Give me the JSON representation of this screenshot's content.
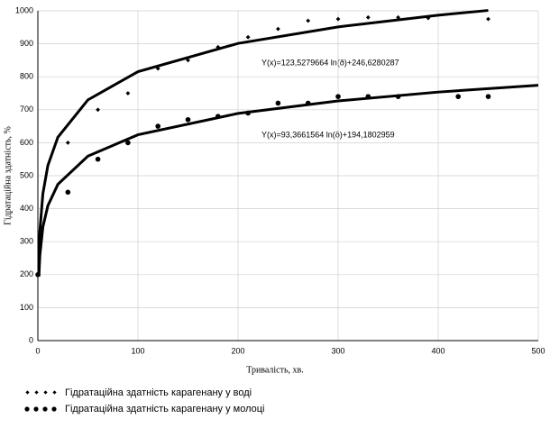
{
  "chart_data": {
    "type": "scatter",
    "x_label": "Тривалість, хв.",
    "y_label": "Гідратаційна здатність, %",
    "xlim": [
      0,
      500
    ],
    "xticks": [
      0,
      100,
      200,
      300,
      400,
      500
    ],
    "ylim": [
      0,
      1000
    ],
    "yticks": [
      0,
      100,
      200,
      300,
      400,
      500,
      600,
      700,
      800,
      900,
      1000
    ],
    "grid": true,
    "series": [
      {
        "name": "Гідратаційна здатність карагенану у воді",
        "color": "#000000",
        "marker": "diamond",
        "x": [
          0,
          30,
          60,
          90,
          120,
          150,
          180,
          210,
          240,
          270,
          300,
          330,
          360,
          390,
          450
        ],
        "values": [
          200,
          600,
          700,
          750,
          825,
          850,
          890,
          920,
          945,
          970,
          975,
          980,
          980,
          978,
          975
        ]
      },
      {
        "name": "Гідратаційна здатність карагенану у молоці",
        "color": "#000000",
        "marker": "circle",
        "x": [
          0,
          30,
          60,
          90,
          120,
          150,
          180,
          210,
          240,
          270,
          300,
          330,
          360,
          420,
          450
        ],
        "values": [
          200,
          450,
          550,
          600,
          650,
          670,
          680,
          690,
          720,
          720,
          740,
          740,
          740,
          740,
          740
        ]
      }
    ],
    "trendlines": [
      {
        "equation": "Y(x)=123,5279664 ln(ð)+246,6280287",
        "color": "#000000",
        "x": [
          1,
          2,
          5,
          10,
          20,
          50,
          100,
          200,
          300,
          400,
          450
        ],
        "values": [
          246.6,
          332.3,
          445.4,
          531.1,
          616.7,
          729.9,
          815.5,
          901.1,
          951.2,
          986.7,
          1001.2
        ]
      },
      {
        "equation": "Y(x)=93,3661564 ln(ð)+194,1802959",
        "color": "#000000",
        "x": [
          1,
          2,
          5,
          10,
          20,
          50,
          100,
          200,
          300,
          400,
          500
        ],
        "values": [
          194.2,
          258.9,
          344.4,
          409.2,
          473.9,
          559.4,
          624.1,
          688.9,
          726.7,
          753.6,
          774.4
        ]
      }
    ]
  }
}
